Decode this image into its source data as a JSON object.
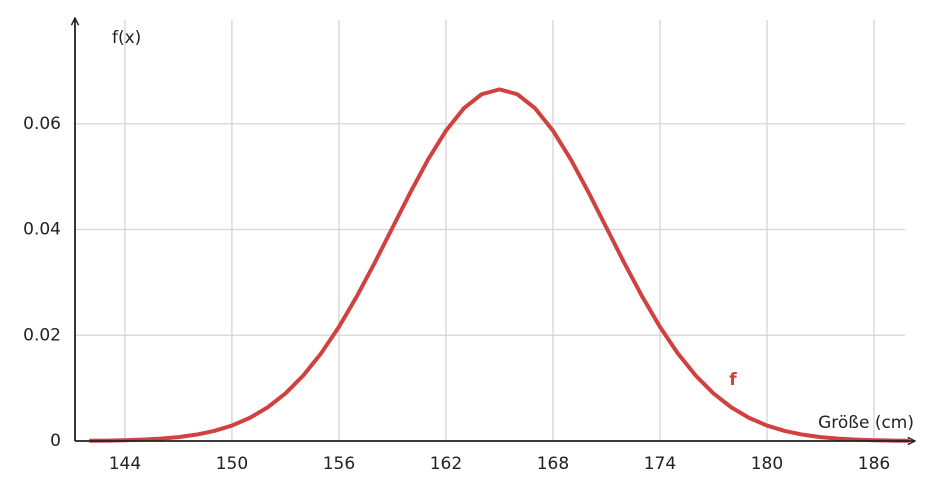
{
  "chart_data": {
    "type": "line",
    "y_label": "f(x)",
    "x_label": "Größe (cm)",
    "x": [
      142,
      143,
      144,
      145,
      146,
      147,
      148,
      149,
      150,
      151,
      152,
      153,
      154,
      155,
      156,
      157,
      158,
      159,
      160,
      161,
      162,
      163,
      164,
      165,
      166,
      167,
      168,
      169,
      170,
      171,
      172,
      173,
      174,
      175,
      176,
      177,
      178,
      179,
      180,
      181,
      182,
      183,
      184,
      185,
      186,
      187,
      188
    ],
    "series": [
      {
        "name": "f",
        "color": "#d0413f",
        "values": [
          4e-05,
          8e-05,
          0.00015,
          0.00026,
          0.00044,
          0.00074,
          0.0012,
          0.0019,
          0.00292,
          0.00437,
          0.00636,
          0.009,
          0.01239,
          0.01658,
          0.02159,
          0.02734,
          0.03367,
          0.04033,
          0.04699,
          0.05325,
          0.05869,
          0.06291,
          0.06558,
          0.0665,
          0.06558,
          0.06291,
          0.05869,
          0.05325,
          0.04699,
          0.04033,
          0.03367,
          0.02734,
          0.02159,
          0.01658,
          0.01239,
          0.009,
          0.00636,
          0.00437,
          0.00292,
          0.0019,
          0.0012,
          0.00074,
          0.00044,
          0.00026,
          0.00015,
          8e-05,
          4e-05
        ]
      }
    ],
    "xlim": [
      141.2,
      188.3
    ],
    "ylim": [
      0,
      0.08
    ],
    "xticks": [
      144,
      150,
      156,
      162,
      168,
      174,
      180,
      186
    ],
    "yticks": [
      0,
      0.02,
      0.04,
      0.06
    ],
    "grid": true
  }
}
